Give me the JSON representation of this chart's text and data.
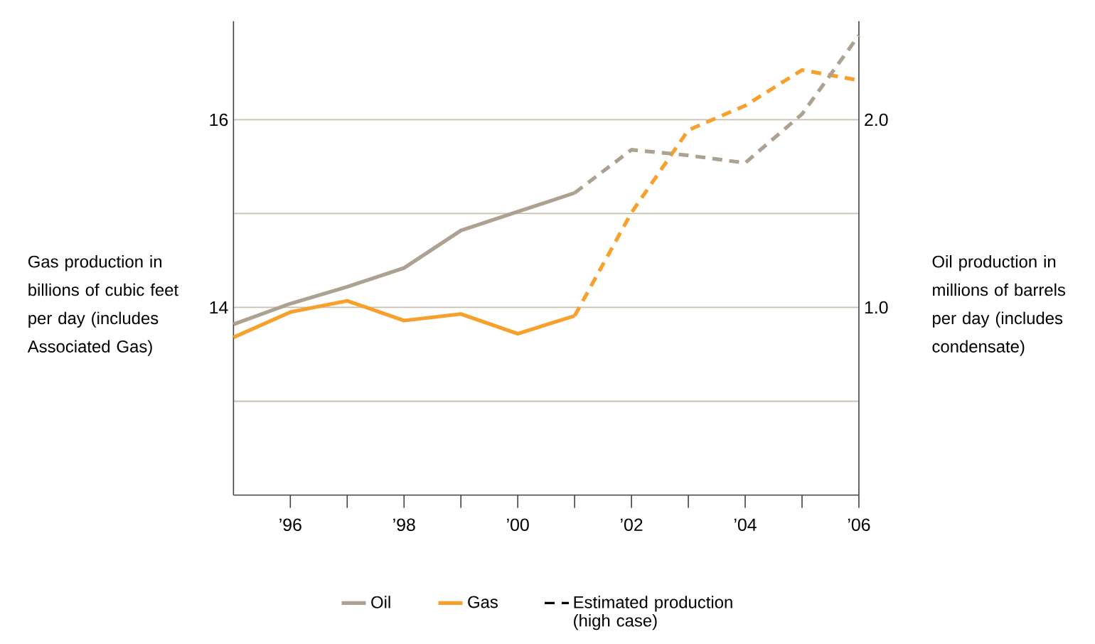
{
  "chart_data": {
    "type": "line",
    "ylabel": "Gas production in billions of cubic feet per day (includes Associated Gas)",
    "y2label": "Oil production in millions of barrels per day (includes condensate)",
    "x": [
      1995,
      1996,
      1997,
      1998,
      1999,
      2000,
      2001,
      2002,
      2003,
      2004,
      2005,
      2006
    ],
    "series": [
      {
        "name": "Oil",
        "color": "#ada292",
        "axis": "y2",
        "line_style": "solid",
        "values": [
          0.91,
          1.02,
          1.11,
          1.21,
          1.41,
          1.51,
          1.61,
          null,
          null,
          null,
          null,
          null
        ]
      },
      {
        "name": "Gas",
        "color": "#f7a02c",
        "line_style": "solid",
        "values": [
          13.68,
          13.95,
          14.07,
          13.86,
          13.93,
          13.72,
          13.91,
          null,
          null,
          null,
          null,
          null
        ]
      },
      {
        "color": "#ada292",
        "axis": "y2",
        "line_style": "dashed",
        "values": [
          null,
          null,
          null,
          null,
          null,
          null,
          1.61,
          1.84,
          1.81,
          1.77,
          2.03,
          2.45
        ]
      },
      {
        "color": "#f7a02c",
        "line_style": "dashed",
        "values": [
          null,
          null,
          null,
          null,
          null,
          null,
          13.91,
          15.01,
          15.89,
          16.15,
          16.53,
          16.42
        ]
      }
    ],
    "annotations": [
      "Estimated production (high case)"
    ],
    "xlim": [
      1995,
      2006
    ],
    "xticks": [
      {
        "value": 1996,
        "label": "’96"
      },
      {
        "value": 1997,
        "label": null
      },
      {
        "value": 1998,
        "label": "’98"
      },
      {
        "value": 1999,
        "label": null
      },
      {
        "value": 2000,
        "label": "’00"
      },
      {
        "value": 2001,
        "label": null
      },
      {
        "value": 2002,
        "label": "’02"
      },
      {
        "value": 2003,
        "label": null
      },
      {
        "value": 2004,
        "label": "’04"
      },
      {
        "value": 2005,
        "label": null
      },
      {
        "value": 2006,
        "label": "’06"
      }
    ],
    "ylim": [
      12,
      17.05
    ],
    "yticks": [
      {
        "value": 13,
        "label": null
      },
      14,
      {
        "value": 15,
        "label": null
      },
      16
    ],
    "y2lim": [
      0,
      2.525
    ],
    "y2ticks": [
      {
        "value": 0.5,
        "label": null
      },
      {
        "value": 1,
        "label": "1.0"
      },
      {
        "value": 1.5,
        "label": null
      },
      {
        "value": 2,
        "label": "2.0"
      }
    ],
    "grid": "y",
    "legend": "bottom"
  }
}
